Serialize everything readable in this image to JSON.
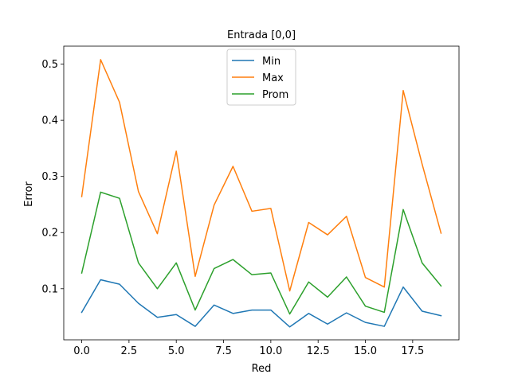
{
  "chart_data": {
    "type": "line",
    "title": "Entrada [0,0]",
    "xlabel": "Red",
    "ylabel": "Error",
    "x": [
      0,
      1,
      2,
      3,
      4,
      5,
      6,
      7,
      8,
      9,
      10,
      11,
      12,
      13,
      14,
      15,
      16,
      17,
      18,
      19
    ],
    "xlim": [
      -0.95,
      19.95
    ],
    "ylim": [
      0.009,
      0.532
    ],
    "xticks": [
      0.0,
      2.5,
      5.0,
      7.5,
      10.0,
      12.5,
      15.0,
      17.5
    ],
    "xtick_labels": [
      "0.0",
      "2.5",
      "5.0",
      "7.5",
      "10.0",
      "12.5",
      "15.0",
      "17.5"
    ],
    "yticks": [
      0.1,
      0.2,
      0.3,
      0.4,
      0.5
    ],
    "ytick_labels": [
      "0.1",
      "0.2",
      "0.3",
      "0.4",
      "0.5"
    ],
    "grid": false,
    "legend_position": "top-center",
    "series": [
      {
        "name": "Min",
        "color": "#1f77b4",
        "values": [
          0.058,
          0.116,
          0.108,
          0.074,
          0.049,
          0.054,
          0.033,
          0.071,
          0.056,
          0.062,
          0.062,
          0.032,
          0.056,
          0.037,
          0.057,
          0.04,
          0.033,
          0.103,
          0.06,
          0.052
        ]
      },
      {
        "name": "Max",
        "color": "#ff7f0e",
        "values": [
          0.264,
          0.508,
          0.432,
          0.273,
          0.198,
          0.345,
          0.122,
          0.249,
          0.318,
          0.238,
          0.243,
          0.096,
          0.218,
          0.196,
          0.229,
          0.12,
          0.103,
          0.453,
          0.322,
          0.199
        ]
      },
      {
        "name": "Prom",
        "color": "#2ca02c",
        "values": [
          0.128,
          0.272,
          0.261,
          0.146,
          0.1,
          0.146,
          0.062,
          0.136,
          0.152,
          0.125,
          0.128,
          0.055,
          0.112,
          0.085,
          0.121,
          0.069,
          0.058,
          0.241,
          0.146,
          0.105
        ]
      }
    ]
  }
}
